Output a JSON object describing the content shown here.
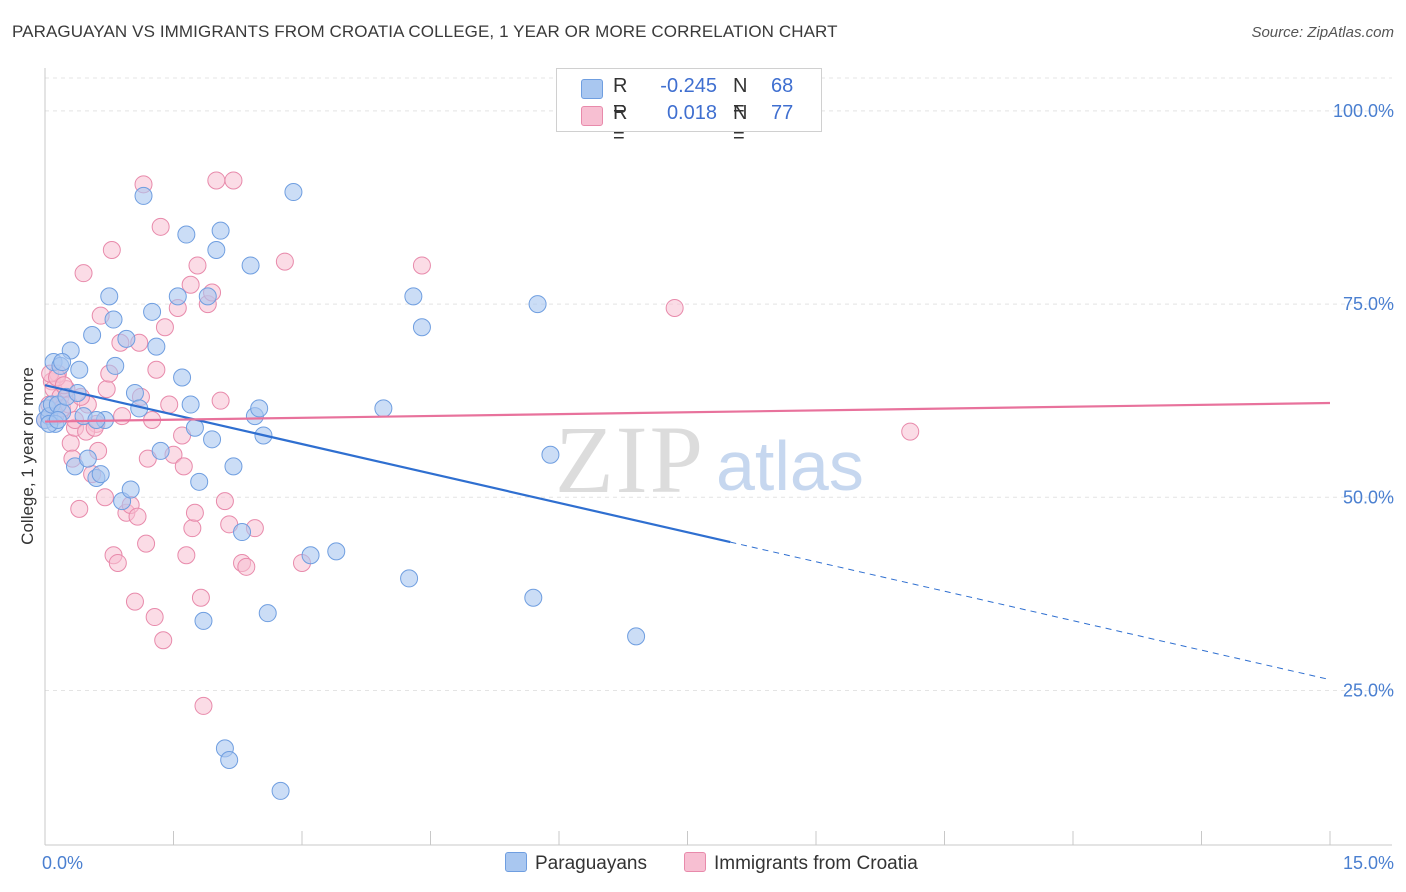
{
  "title": "PARAGUAYAN VS IMMIGRANTS FROM CROATIA COLLEGE, 1 YEAR OR MORE CORRELATION CHART",
  "source": "Source: ZipAtlas.com",
  "watermark": {
    "zip": "ZIP",
    "atlas": "atlas"
  },
  "legend": {
    "rows": [
      {
        "r_label": "R =",
        "r_value": "-0.245",
        "n_label": "N =",
        "n_value": "68",
        "color": "#a9c7f0",
        "border": "#6f9ee0"
      },
      {
        "r_label": "R =",
        "r_value": "0.018",
        "n_label": "N =",
        "n_value": "77",
        "color": "#f7bfd2",
        "border": "#e88aab"
      }
    ],
    "bottom": [
      {
        "label": "Paraguayans",
        "color": "#a9c7f0",
        "border": "#6f9ee0"
      },
      {
        "label": "Immigrants from Croatia",
        "color": "#f7bfd2",
        "border": "#e88aab"
      }
    ]
  },
  "chart_data": {
    "type": "scatter",
    "title": "PARAGUAYAN VS IMMIGRANTS FROM CROATIA COLLEGE, 1 YEAR OR MORE CORRELATION CHART",
    "xlabel": "",
    "ylabel": "College, 1 year or more",
    "xlim": [
      0,
      15
    ],
    "ylim": [
      5,
      104
    ],
    "x_tick_labels": [
      "0.0%",
      "15.0%"
    ],
    "y_ticks": [
      25,
      50,
      75,
      100
    ],
    "y_tick_labels": [
      "25.0%",
      "50.0%",
      "75.0%",
      "100.0%"
    ],
    "colors": {
      "blue": "#4d8fe0",
      "blue_fill": "#a9c7f0",
      "pink": "#e8729c",
      "pink_fill": "#f7bfd2",
      "grid": "#e4e4e4",
      "tick_text": "#4a7fd0"
    },
    "series": [
      {
        "name": "Paraguayans",
        "color": "#a9c7f0",
        "points": [
          [
            0.0,
            60
          ],
          [
            0.03,
            61.5
          ],
          [
            0.05,
            60.5
          ],
          [
            0.08,
            62
          ],
          [
            0.1,
            67.5
          ],
          [
            0.15,
            62
          ],
          [
            0.18,
            67
          ],
          [
            0.2,
            61
          ],
          [
            0.3,
            69
          ],
          [
            0.35,
            54
          ],
          [
            0.4,
            66.5
          ],
          [
            0.45,
            60.5
          ],
          [
            0.5,
            55
          ],
          [
            0.55,
            71
          ],
          [
            0.6,
            52.5
          ],
          [
            0.65,
            53
          ],
          [
            0.7,
            60
          ],
          [
            0.75,
            76
          ],
          [
            0.8,
            73
          ],
          [
            0.82,
            67
          ],
          [
            0.9,
            49.5
          ],
          [
            0.95,
            70.5
          ],
          [
            1.0,
            51
          ],
          [
            1.05,
            63.5
          ],
          [
            1.1,
            61.5
          ],
          [
            1.15,
            89
          ],
          [
            1.25,
            74
          ],
          [
            1.3,
            69.5
          ],
          [
            1.35,
            56
          ],
          [
            1.55,
            76
          ],
          [
            1.6,
            65.5
          ],
          [
            1.65,
            84
          ],
          [
            1.7,
            62
          ],
          [
            1.75,
            59
          ],
          [
            1.8,
            52
          ],
          [
            1.85,
            34
          ],
          [
            1.9,
            76
          ],
          [
            1.95,
            57.5
          ],
          [
            2.0,
            82
          ],
          [
            2.05,
            84.5
          ],
          [
            2.1,
            17.5
          ],
          [
            2.15,
            16
          ],
          [
            2.2,
            54
          ],
          [
            2.3,
            45.5
          ],
          [
            2.4,
            80
          ],
          [
            2.45,
            60.5
          ],
          [
            2.5,
            61.5
          ],
          [
            2.55,
            58
          ],
          [
            2.6,
            35
          ],
          [
            2.75,
            12
          ],
          [
            2.9,
            89.5
          ],
          [
            3.1,
            42.5
          ],
          [
            3.4,
            43
          ],
          [
            3.95,
            61.5
          ],
          [
            4.25,
            39.5
          ],
          [
            4.3,
            76
          ],
          [
            4.4,
            72
          ],
          [
            5.7,
            37
          ],
          [
            5.75,
            75
          ],
          [
            5.9,
            55.5
          ],
          [
            6.9,
            32
          ],
          [
            0.12,
            59.5
          ],
          [
            0.25,
            63
          ],
          [
            0.38,
            63.5
          ],
          [
            0.05,
            59.5
          ],
          [
            0.6,
            60
          ],
          [
            0.2,
            67.5
          ],
          [
            0.15,
            60
          ]
        ]
      },
      {
        "name": "Immigrants from Croatia",
        "color": "#f7bfd2",
        "points": [
          [
            0.0,
            60
          ],
          [
            0.05,
            62
          ],
          [
            0.08,
            65
          ],
          [
            0.1,
            64
          ],
          [
            0.12,
            60.5
          ],
          [
            0.15,
            66
          ],
          [
            0.18,
            63
          ],
          [
            0.2,
            61.5
          ],
          [
            0.25,
            64
          ],
          [
            0.3,
            57
          ],
          [
            0.32,
            55
          ],
          [
            0.35,
            59
          ],
          [
            0.4,
            48.5
          ],
          [
            0.45,
            79
          ],
          [
            0.5,
            62
          ],
          [
            0.55,
            53
          ],
          [
            0.6,
            59.5
          ],
          [
            0.62,
            56
          ],
          [
            0.65,
            73.5
          ],
          [
            0.7,
            50
          ],
          [
            0.72,
            64
          ],
          [
            0.75,
            66
          ],
          [
            0.78,
            82
          ],
          [
            0.8,
            42.5
          ],
          [
            0.85,
            41.5
          ],
          [
            0.88,
            70
          ],
          [
            0.9,
            60.5
          ],
          [
            0.95,
            48
          ],
          [
            1.0,
            49
          ],
          [
            1.05,
            36.5
          ],
          [
            1.1,
            70
          ],
          [
            1.12,
            63
          ],
          [
            1.15,
            90.5
          ],
          [
            1.18,
            44
          ],
          [
            1.2,
            55
          ],
          [
            1.25,
            60
          ],
          [
            1.28,
            34.5
          ],
          [
            1.3,
            66.5
          ],
          [
            1.35,
            85
          ],
          [
            1.38,
            31.5
          ],
          [
            1.4,
            72
          ],
          [
            1.45,
            62
          ],
          [
            1.5,
            55.5
          ],
          [
            1.55,
            74.5
          ],
          [
            1.6,
            58
          ],
          [
            1.62,
            54
          ],
          [
            1.65,
            42.5
          ],
          [
            1.7,
            77.5
          ],
          [
            1.72,
            46
          ],
          [
            1.75,
            48
          ],
          [
            1.78,
            80
          ],
          [
            1.82,
            37
          ],
          [
            1.85,
            23
          ],
          [
            1.9,
            75
          ],
          [
            1.95,
            76.5
          ],
          [
            2.0,
            91
          ],
          [
            2.05,
            62.5
          ],
          [
            2.1,
            49.5
          ],
          [
            2.15,
            46.5
          ],
          [
            2.2,
            91
          ],
          [
            2.3,
            41.5
          ],
          [
            2.35,
            41
          ],
          [
            2.45,
            46
          ],
          [
            2.8,
            80.5
          ],
          [
            3.0,
            41.5
          ],
          [
            4.4,
            80
          ],
          [
            7.35,
            74.5
          ],
          [
            10.1,
            58.5
          ],
          [
            0.06,
            66
          ],
          [
            0.14,
            65.5
          ],
          [
            0.22,
            64.5
          ],
          [
            0.28,
            62
          ],
          [
            0.35,
            60
          ],
          [
            0.42,
            63
          ],
          [
            0.48,
            58.5
          ],
          [
            0.58,
            59
          ],
          [
            1.08,
            47.5
          ]
        ]
      }
    ],
    "trendlines": [
      {
        "name": "Paraguayans",
        "x_start": 0.0,
        "y_start": 64.5,
        "x_solid_end": 8.0,
        "y_solid_end": 44.2,
        "x_end": 15.0,
        "y_end": 26.4,
        "color": "#2f6fd0"
      },
      {
        "name": "Immigrants from Croatia",
        "x_start": 0.0,
        "y_start": 59.8,
        "x_end": 15.0,
        "y_end": 62.2,
        "color": "#e8729c"
      }
    ]
  }
}
